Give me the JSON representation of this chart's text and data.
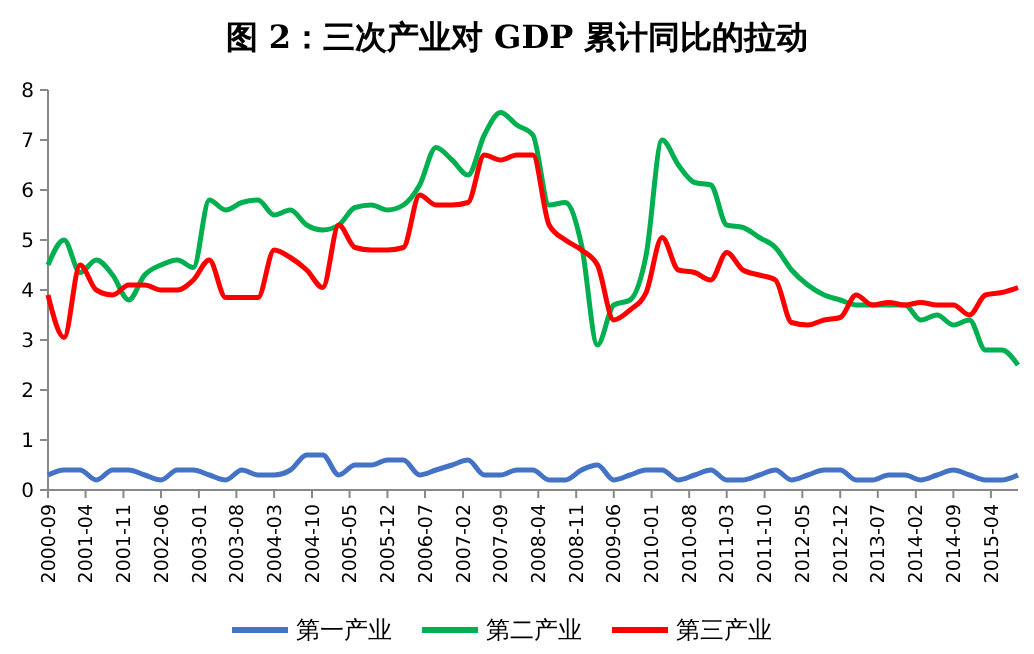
{
  "chart_data": {
    "type": "line",
    "title": "图 2：三次产业对 GDP 累计同比的拉动",
    "x": [
      "2000-09",
      "2000-12",
      "2001-03",
      "2001-06",
      "2001-09",
      "2001-12",
      "2002-03",
      "2002-06",
      "2002-09",
      "2002-12",
      "2003-03",
      "2003-06",
      "2003-09",
      "2003-12",
      "2004-03",
      "2004-06",
      "2004-09",
      "2004-12",
      "2005-03",
      "2005-06",
      "2005-09",
      "2005-12",
      "2006-03",
      "2006-06",
      "2006-09",
      "2006-12",
      "2007-03",
      "2007-06",
      "2007-09",
      "2007-12",
      "2008-03",
      "2008-06",
      "2008-09",
      "2008-12",
      "2009-03",
      "2009-06",
      "2009-09",
      "2009-12",
      "2010-03",
      "2010-06",
      "2010-09",
      "2010-12",
      "2011-03",
      "2011-06",
      "2011-09",
      "2011-12",
      "2012-03",
      "2012-06",
      "2012-09",
      "2012-12",
      "2013-03",
      "2013-06",
      "2013-09",
      "2013-12",
      "2014-03",
      "2014-06",
      "2014-09",
      "2014-12",
      "2015-03",
      "2015-06",
      "2015-09"
    ],
    "series": [
      {
        "name": "第一产业",
        "color": "#4472c4",
        "values": [
          0.3,
          0.4,
          0.4,
          0.2,
          0.4,
          0.4,
          0.3,
          0.2,
          0.4,
          0.4,
          0.3,
          0.2,
          0.4,
          0.3,
          0.3,
          0.4,
          0.7,
          0.7,
          0.3,
          0.5,
          0.5,
          0.6,
          0.6,
          0.3,
          0.4,
          0.5,
          0.6,
          0.3,
          0.3,
          0.4,
          0.4,
          0.2,
          0.2,
          0.4,
          0.5,
          0.2,
          0.3,
          0.4,
          0.4,
          0.2,
          0.3,
          0.4,
          0.2,
          0.2,
          0.3,
          0.4,
          0.2,
          0.3,
          0.4,
          0.4,
          0.2,
          0.2,
          0.3,
          0.3,
          0.2,
          0.3,
          0.4,
          0.3,
          0.2,
          0.2,
          0.3
        ]
      },
      {
        "name": "第二产业",
        "color": "#00b050",
        "values": [
          4.5,
          5.0,
          4.35,
          4.6,
          4.3,
          3.8,
          4.3,
          4.5,
          4.6,
          4.45,
          5.8,
          5.6,
          5.75,
          5.8,
          5.5,
          5.6,
          5.3,
          5.2,
          5.3,
          5.65,
          5.7,
          5.6,
          5.7,
          6.1,
          6.85,
          6.6,
          6.3,
          7.1,
          7.55,
          7.3,
          7.1,
          5.7,
          5.75,
          4.9,
          2.9,
          3.7,
          3.8,
          4.7,
          7.0,
          6.5,
          6.15,
          6.1,
          5.3,
          5.25,
          5.05,
          4.85,
          4.4,
          4.1,
          3.9,
          3.8,
          3.7,
          3.7,
          3.7,
          3.7,
          3.4,
          3.5,
          3.3,
          3.4,
          2.8,
          2.8,
          2.5
        ]
      },
      {
        "name": "第三产业",
        "color": "#ff0000",
        "values": [
          3.9,
          3.05,
          4.5,
          4.0,
          3.9,
          4.1,
          4.1,
          4.0,
          4.0,
          4.2,
          4.6,
          3.85,
          3.85,
          3.85,
          4.8,
          4.65,
          4.4,
          4.05,
          5.3,
          4.85,
          4.8,
          4.8,
          4.85,
          5.9,
          5.7,
          5.7,
          5.75,
          6.7,
          6.6,
          6.7,
          6.7,
          5.3,
          5.0,
          4.8,
          4.5,
          3.4,
          3.6,
          3.95,
          5.05,
          4.4,
          4.35,
          4.2,
          4.75,
          4.4,
          4.3,
          4.2,
          3.35,
          3.3,
          3.4,
          3.45,
          3.9,
          3.7,
          3.75,
          3.7,
          3.75,
          3.7,
          3.7,
          3.5,
          3.9,
          3.95,
          4.05
        ]
      }
    ],
    "xlim": [
      "2000-09",
      "2015-09"
    ],
    "xticks": [
      "2000-09",
      "2001-04",
      "2001-11",
      "2002-06",
      "2003-01",
      "2003-08",
      "2004-03",
      "2004-10",
      "2005-05",
      "2005-12",
      "2006-07",
      "2007-02",
      "2007-09",
      "2008-04",
      "2008-11",
      "2009-06",
      "2010-01",
      "2010-08",
      "2011-03",
      "2011-10",
      "2012-05",
      "2012-12",
      "2013-07",
      "2014-02",
      "2014-09",
      "2015-04"
    ],
    "ylim": [
      0,
      8
    ],
    "yticks": [
      0,
      1,
      2,
      3,
      4,
      5,
      6,
      7,
      8
    ],
    "grid": false,
    "legend": "bottom",
    "marker": "none",
    "line_style": "solid"
  }
}
